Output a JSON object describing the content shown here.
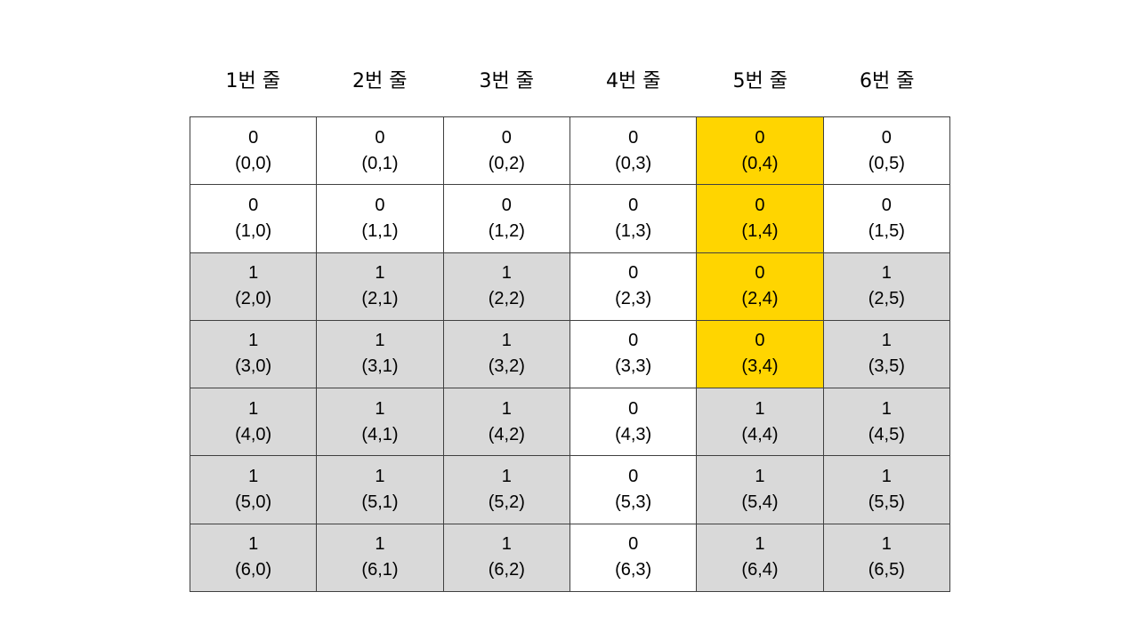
{
  "headers": [
    "1번 줄",
    "2번 줄",
    "3번 줄",
    "4번 줄",
    "5번 줄",
    "6번 줄"
  ],
  "colors": {
    "zero_cell": "#ffffff",
    "one_cell": "#d9d9d9",
    "highlight": "#ffd500"
  },
  "highlighted_cells": [
    "0,4",
    "1,4",
    "2,4",
    "3,4"
  ],
  "grid": [
    [
      {
        "value": "0",
        "coord": "(0,0)"
      },
      {
        "value": "0",
        "coord": "(0,1)"
      },
      {
        "value": "0",
        "coord": "(0,2)"
      },
      {
        "value": "0",
        "coord": "(0,3)"
      },
      {
        "value": "0",
        "coord": "(0,4)"
      },
      {
        "value": "0",
        "coord": "(0,5)"
      }
    ],
    [
      {
        "value": "0",
        "coord": "(1,0)"
      },
      {
        "value": "0",
        "coord": "(1,1)"
      },
      {
        "value": "0",
        "coord": "(1,2)"
      },
      {
        "value": "0",
        "coord": "(1,3)"
      },
      {
        "value": "0",
        "coord": "(1,4)"
      },
      {
        "value": "0",
        "coord": "(1,5)"
      }
    ],
    [
      {
        "value": "1",
        "coord": "(2,0)"
      },
      {
        "value": "1",
        "coord": "(2,1)"
      },
      {
        "value": "1",
        "coord": "(2,2)"
      },
      {
        "value": "0",
        "coord": "(2,3)"
      },
      {
        "value": "0",
        "coord": "(2,4)"
      },
      {
        "value": "1",
        "coord": "(2,5)"
      }
    ],
    [
      {
        "value": "1",
        "coord": "(3,0)"
      },
      {
        "value": "1",
        "coord": "(3,1)"
      },
      {
        "value": "1",
        "coord": "(3,2)"
      },
      {
        "value": "0",
        "coord": "(3,3)"
      },
      {
        "value": "0",
        "coord": "(3,4)"
      },
      {
        "value": "1",
        "coord": "(3,5)"
      }
    ],
    [
      {
        "value": "1",
        "coord": "(4,0)"
      },
      {
        "value": "1",
        "coord": "(4,1)"
      },
      {
        "value": "1",
        "coord": "(4,2)"
      },
      {
        "value": "0",
        "coord": "(4,3)"
      },
      {
        "value": "1",
        "coord": "(4,4)"
      },
      {
        "value": "1",
        "coord": "(4,5)"
      }
    ],
    [
      {
        "value": "1",
        "coord": "(5,0)"
      },
      {
        "value": "1",
        "coord": "(5,1)"
      },
      {
        "value": "1",
        "coord": "(5,2)"
      },
      {
        "value": "0",
        "coord": "(5,3)"
      },
      {
        "value": "1",
        "coord": "(5,4)"
      },
      {
        "value": "1",
        "coord": "(5,5)"
      }
    ],
    [
      {
        "value": "1",
        "coord": "(6,0)"
      },
      {
        "value": "1",
        "coord": "(6,1)"
      },
      {
        "value": "1",
        "coord": "(6,2)"
      },
      {
        "value": "0",
        "coord": "(6,3)"
      },
      {
        "value": "1",
        "coord": "(6,4)"
      },
      {
        "value": "1",
        "coord": "(6,5)"
      }
    ]
  ]
}
